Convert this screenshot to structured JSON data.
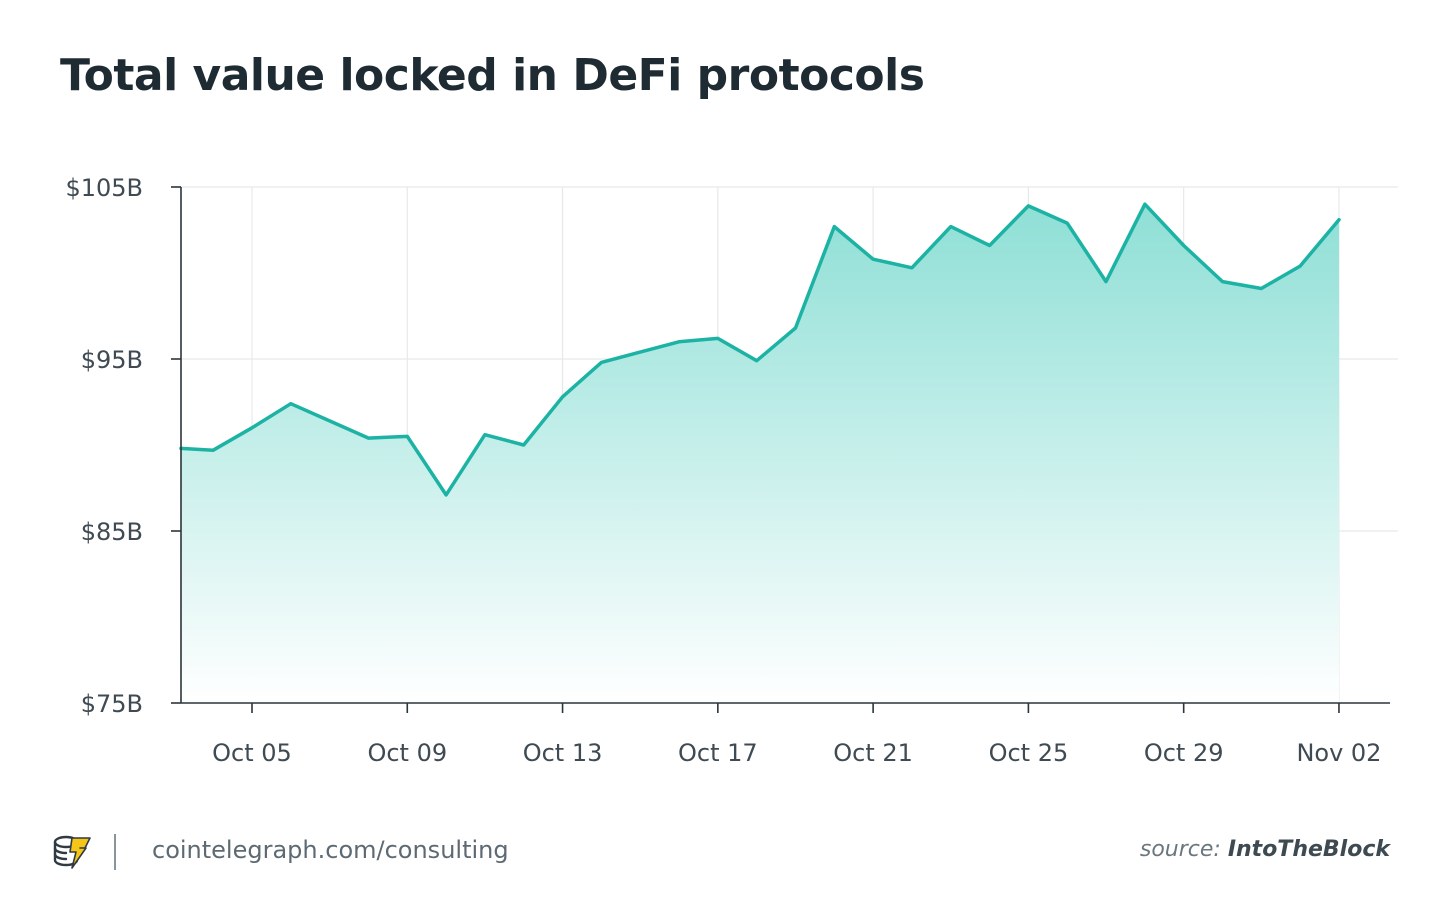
{
  "header": {
    "title": "Total value locked in DeFi protocols"
  },
  "footer": {
    "site": "cointelegraph.com/consulting",
    "source_prefix": "source:",
    "source_name": "IntoTheBlock",
    "logo_icon": "cointelegraph-coin-icon"
  },
  "colors": {
    "line": "#1cb3a4",
    "area_top": "#8edfd6",
    "area_bottom": "#ffffff",
    "grid": "#e6e9eb",
    "axis": "#2b353c",
    "logo_yellow": "#f5c518"
  },
  "chart_data": {
    "type": "area",
    "title": "Total value locked in DeFi protocols",
    "xlabel": "",
    "ylabel": "",
    "ylim": [
      75,
      105
    ],
    "yticks": [
      75,
      85,
      95,
      105
    ],
    "ytick_labels": [
      "$75B",
      "$85B",
      "$95B",
      "$105B"
    ],
    "grid": true,
    "x_tick_labels": [
      "Oct 05",
      "Oct 09",
      "Oct 13",
      "Oct 17",
      "Oct 21",
      "Oct 25",
      "Oct 29",
      "Nov 02"
    ],
    "x_tick_dates": [
      "2021-10-05",
      "2021-10-09",
      "2021-10-13",
      "2021-10-17",
      "2021-10-21",
      "2021-10-25",
      "2021-10-29",
      "2021-11-02"
    ],
    "series": [
      {
        "x": [
          "2021-10-03",
          "2021-10-04",
          "2021-10-05",
          "2021-10-06",
          "2021-10-07",
          "2021-10-08",
          "2021-10-09",
          "2021-10-10",
          "2021-10-11",
          "2021-10-12",
          "2021-10-13",
          "2021-10-14",
          "2021-10-15",
          "2021-10-16",
          "2021-10-17",
          "2021-10-18",
          "2021-10-19",
          "2021-10-20",
          "2021-10-21",
          "2021-10-22",
          "2021-10-23",
          "2021-10-24",
          "2021-10-25",
          "2021-10-26",
          "2021-10-27",
          "2021-10-28",
          "2021-10-29",
          "2021-10-30",
          "2021-10-31",
          "2021-11-01",
          "2021-11-02"
        ],
        "y": [
          89.8,
          89.7,
          91.0,
          92.4,
          91.4,
          90.4,
          90.5,
          87.1,
          90.6,
          90.0,
          92.8,
          94.8,
          95.4,
          96.0,
          96.2,
          94.9,
          96.8,
          102.7,
          100.8,
          100.3,
          102.7,
          101.6,
          103.9,
          102.9,
          99.5,
          104.0,
          101.6,
          99.5,
          99.1,
          100.4,
          103.1
        ]
      }
    ]
  }
}
